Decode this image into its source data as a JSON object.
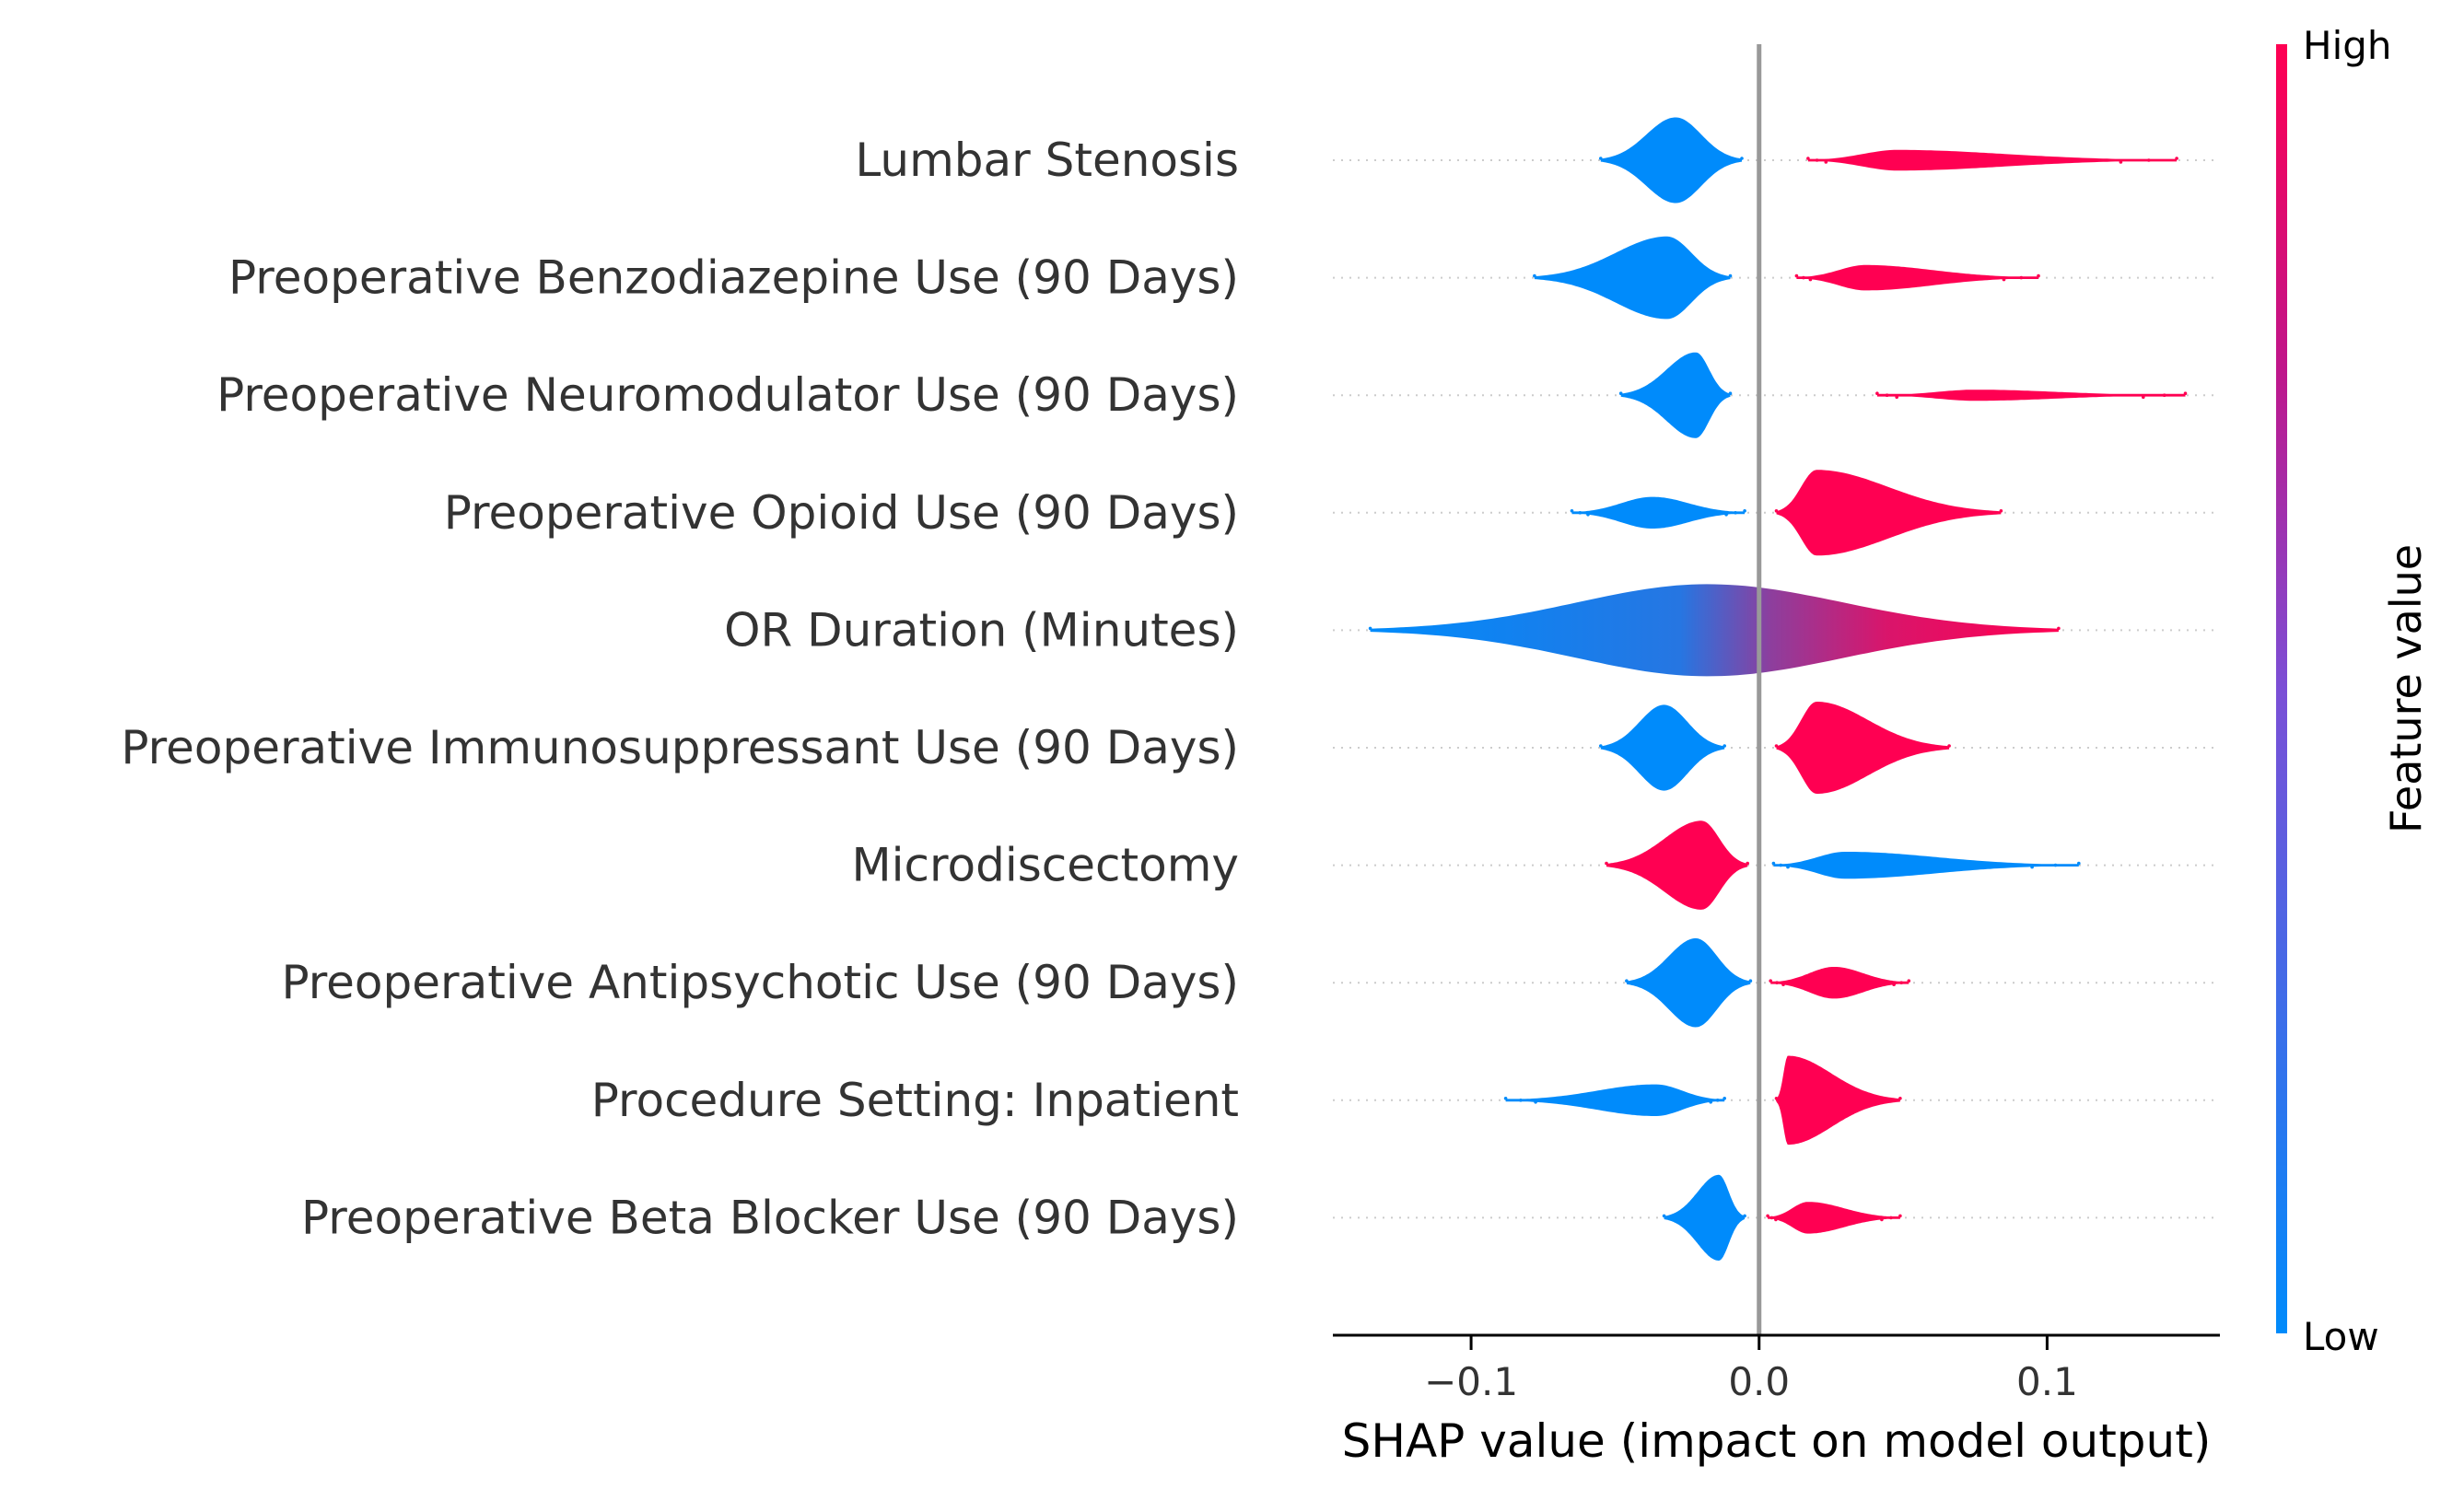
{
  "colors": {
    "low": "#008bfb",
    "high": "#ff0052",
    "zero_line": "#999999",
    "guide": "#cccccc",
    "axis": "#000000",
    "label": "#333333"
  },
  "chart_data": {
    "type": "scatter",
    "subtype": "shap-beeswarm",
    "title": "",
    "xlabel": "SHAP value (impact on model output)",
    "ylabel": "",
    "xlim": [
      -0.148,
      0.16
    ],
    "xticks": [
      -0.1,
      0.0,
      0.1
    ],
    "xtick_labels": [
      "−0.1",
      "0.0",
      "0.1"
    ],
    "zero_line": 0.0,
    "guide_lines_range": [
      -0.148,
      0.16
    ],
    "colorbar": {
      "title": "Feature value",
      "high_label": "High",
      "low_label": "Low"
    },
    "features": [
      {
        "name": "Lumbar Stenosis",
        "clusters": [
          {
            "color": "low",
            "center": -0.029,
            "min": -0.055,
            "max": -0.006,
            "peak": 0.027
          },
          {
            "color": "high",
            "center": 0.048,
            "min": 0.017,
            "max": 0.145,
            "peak": 0.0065
          }
        ]
      },
      {
        "name": "Preoperative Benzodiazepine Use (90 Days)",
        "clusters": [
          {
            "color": "low",
            "center": -0.032,
            "min": -0.078,
            "max": -0.01,
            "peak": 0.026
          },
          {
            "color": "high",
            "center": 0.037,
            "min": 0.013,
            "max": 0.097,
            "peak": 0.008
          }
        ]
      },
      {
        "name": "Preoperative Neuromodulator Use (90 Days)",
        "clusters": [
          {
            "color": "low",
            "center": -0.022,
            "min": -0.048,
            "max": -0.01,
            "peak": 0.027
          },
          {
            "color": "high",
            "center": 0.075,
            "min": 0.041,
            "max": 0.148,
            "peak": 0.0035
          }
        ]
      },
      {
        "name": "Preoperative Opioid Use (90 Days)",
        "clusters": [
          {
            "color": "low",
            "center": -0.037,
            "min": -0.065,
            "max": -0.005,
            "peak": 0.01
          },
          {
            "color": "high",
            "center": 0.02,
            "min": 0.006,
            "max": 0.084,
            "peak": 0.027
          }
        ]
      },
      {
        "name": "OR Duration (Minutes)",
        "clusters": [
          {
            "color": "gradient",
            "center": -0.018,
            "min": -0.135,
            "max": 0.104,
            "peak": 0.029
          }
        ]
      },
      {
        "name": "Preoperative Immunosuppressant Use (90 Days)",
        "clusters": [
          {
            "color": "low",
            "center": -0.033,
            "min": -0.055,
            "max": -0.012,
            "peak": 0.027
          },
          {
            "color": "high",
            "center": 0.02,
            "min": 0.006,
            "max": 0.066,
            "peak": 0.029
          }
        ]
      },
      {
        "name": "Microdiscectomy",
        "clusters": [
          {
            "color": "high",
            "center": -0.02,
            "min": -0.053,
            "max": -0.004,
            "peak": 0.028
          },
          {
            "color": "low",
            "center": 0.03,
            "min": 0.005,
            "max": 0.111,
            "peak": 0.0085
          }
        ]
      },
      {
        "name": "Preoperative Antipsychotic Use (90 Days)",
        "clusters": [
          {
            "color": "low",
            "center": -0.022,
            "min": -0.046,
            "max": -0.003,
            "peak": 0.028
          },
          {
            "color": "high",
            "center": 0.026,
            "min": 0.004,
            "max": 0.052,
            "peak": 0.01
          }
        ]
      },
      {
        "name": "Procedure Setting: Inpatient",
        "clusters": [
          {
            "color": "low",
            "center": -0.036,
            "min": -0.088,
            "max": -0.012,
            "peak": 0.01
          },
          {
            "color": "high",
            "center": 0.01,
            "min": 0.006,
            "max": 0.049,
            "peak": 0.028
          }
        ]
      },
      {
        "name": "Preoperative Beta Blocker Use (90 Days)",
        "clusters": [
          {
            "color": "low",
            "center": -0.014,
            "min": -0.033,
            "max": -0.005,
            "peak": 0.027
          },
          {
            "color": "high",
            "center": 0.017,
            "min": 0.003,
            "max": 0.049,
            "peak": 0.01
          }
        ]
      }
    ]
  }
}
